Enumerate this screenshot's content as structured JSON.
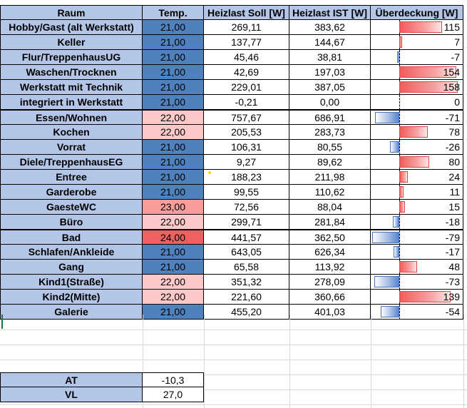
{
  "headers": {
    "raum": "Raum",
    "temp": "Temp.",
    "soll": "Heizlast Soll [W]",
    "ist": "Heizlast IST [W]",
    "ueberdeckung": "Überdeckung [W]"
  },
  "rows": [
    {
      "raum": "Hobby/Gast (alt Werkstatt)",
      "temp": "21,00",
      "soll": "269,11",
      "ist": "383,62",
      "ueb": "115",
      "value": 115,
      "temp_class": "t-blue"
    },
    {
      "raum": "Keller",
      "temp": "21,00",
      "soll": "137,77",
      "ist": "144,67",
      "ueb": "7",
      "value": 7,
      "temp_class": "t-blue"
    },
    {
      "raum": "Flur/TreppenhausUG",
      "temp": "21,00",
      "soll": "45,46",
      "ist": "38,81",
      "ueb": "-7",
      "value": -7,
      "temp_class": "t-blue"
    },
    {
      "raum": "Waschen/Trocknen",
      "temp": "21,00",
      "soll": "42,69",
      "ist": "197,03",
      "ueb": "154",
      "value": 154,
      "temp_class": "t-blue"
    },
    {
      "raum": "Werkstatt mit Technik",
      "temp": "21,00",
      "soll": "229,01",
      "ist": "387,05",
      "ueb": "158",
      "value": 158,
      "temp_class": "t-blue"
    },
    {
      "raum": "integriert in Werkstatt",
      "temp": "21,00",
      "soll": "-0,21",
      "ist": "0,00",
      "ueb": "0",
      "value": 0,
      "temp_class": "t-blue"
    },
    {
      "raum": "Essen/Wohnen",
      "temp": "22,00",
      "soll": "757,67",
      "ist": "686,91",
      "ueb": "-71",
      "value": -71,
      "temp_class": "t-pink",
      "thick": true
    },
    {
      "raum": "Kochen",
      "temp": "22,00",
      "soll": "205,53",
      "ist": "283,73",
      "ueb": "78",
      "value": 78,
      "temp_class": "t-pink"
    },
    {
      "raum": "Vorrat",
      "temp": "21,00",
      "soll": "106,31",
      "ist": "80,55",
      "ueb": "-26",
      "value": -26,
      "temp_class": "t-blue"
    },
    {
      "raum": "Diele/TreppenhausEG",
      "temp": "21,00",
      "soll": "9,27",
      "ist": "89,62",
      "ueb": "80",
      "value": 80,
      "temp_class": "t-blue"
    },
    {
      "raum": "Entree",
      "temp": "21,00",
      "soll": "188,23",
      "ist": "211,98",
      "ueb": "24",
      "value": 24,
      "temp_class": "t-blue"
    },
    {
      "raum": "Garderobe",
      "temp": "21,00",
      "soll": "99,55",
      "ist": "110,62",
      "ueb": "11",
      "value": 11,
      "temp_class": "t-blue"
    },
    {
      "raum": "GaesteWC",
      "temp": "23,00",
      "soll": "72,56",
      "ist": "88,04",
      "ueb": "15",
      "value": 15,
      "temp_class": "t-salmon"
    },
    {
      "raum": "Büro",
      "temp": "22,00",
      "soll": "299,71",
      "ist": "281,84",
      "ueb": "-18",
      "value": -18,
      "temp_class": "t-pink"
    },
    {
      "raum": "Bad",
      "temp": "24,00",
      "soll": "441,57",
      "ist": "362,50",
      "ueb": "-79",
      "value": -79,
      "temp_class": "t-red",
      "thick": true
    },
    {
      "raum": "Schlafen/Ankleide",
      "temp": "21,00",
      "soll": "643,05",
      "ist": "626,34",
      "ueb": "-17",
      "value": -17,
      "temp_class": "t-blue"
    },
    {
      "raum": "Gang",
      "temp": "21,00",
      "soll": "65,58",
      "ist": "113,92",
      "ueb": "48",
      "value": 48,
      "temp_class": "t-blue"
    },
    {
      "raum": "Kind1(Straße)",
      "temp": "22,00",
      "soll": "351,32",
      "ist": "278,09",
      "ueb": "-73",
      "value": -73,
      "temp_class": "t-pink"
    },
    {
      "raum": "Kind2(Mitte)",
      "temp": "22,00",
      "soll": "221,60",
      "ist": "360,66",
      "ueb": "139",
      "value": 139,
      "temp_class": "t-pink"
    },
    {
      "raum": "Galerie",
      "temp": "21,00",
      "soll": "455,20",
      "ist": "401,03",
      "ueb": "-54",
      "value": -54,
      "temp_class": "t-blue"
    }
  ],
  "footer": [
    {
      "label": "AT",
      "value": "-10,3"
    },
    {
      "label": "VL",
      "value": "27,0"
    }
  ],
  "colors": {
    "header_bg": "#b4c6e7",
    "temp_21": "#4f81bd",
    "temp_22": "#fcc8c8",
    "temp_23": "#fa9c9c",
    "temp_24": "#f06060",
    "bar_positive": "#f25c5c",
    "bar_negative": "#5b86d0"
  }
}
